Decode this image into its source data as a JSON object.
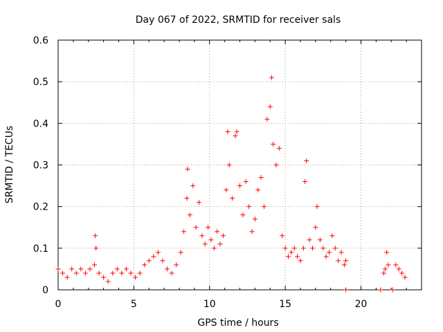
{
  "chart_data": {
    "type": "scatter",
    "title": "Day 067 of 2022, SRMTID for receiver sals",
    "xlabel": "GPS time / hours",
    "ylabel": "SRMTID / TECUs",
    "xlim": [
      0,
      24
    ],
    "ylim": [
      0,
      0.6
    ],
    "x_ticks": [
      0,
      5,
      10,
      15,
      20
    ],
    "y_ticks": [
      0,
      0.1,
      0.2,
      0.3,
      0.4,
      0.5,
      0.6
    ],
    "x_tick_labels": [
      "0",
      "5",
      "10",
      "15",
      "20"
    ],
    "y_tick_labels": [
      "0",
      "0.1",
      "0.2",
      "0.3",
      "0.4",
      "0.5",
      "0.6"
    ],
    "grid": true,
    "marker": "+",
    "color": "#ff0000",
    "series": [
      {
        "name": "SRMTID",
        "points": [
          [
            0.0,
            0.05
          ],
          [
            0.3,
            0.04
          ],
          [
            0.6,
            0.03
          ],
          [
            0.9,
            0.05
          ],
          [
            1.2,
            0.04
          ],
          [
            1.5,
            0.05
          ],
          [
            1.8,
            0.04
          ],
          [
            2.1,
            0.05
          ],
          [
            2.4,
            0.06
          ],
          [
            2.45,
            0.13
          ],
          [
            2.5,
            0.1
          ],
          [
            2.7,
            0.04
          ],
          [
            3.0,
            0.03
          ],
          [
            3.3,
            0.02
          ],
          [
            3.6,
            0.04
          ],
          [
            3.9,
            0.05
          ],
          [
            4.2,
            0.04
          ],
          [
            4.5,
            0.05
          ],
          [
            4.8,
            0.04
          ],
          [
            5.1,
            0.03
          ],
          [
            5.4,
            0.04
          ],
          [
            5.7,
            0.06
          ],
          [
            6.0,
            0.07
          ],
          [
            6.3,
            0.08
          ],
          [
            6.6,
            0.09
          ],
          [
            6.9,
            0.07
          ],
          [
            7.2,
            0.05
          ],
          [
            7.5,
            0.04
          ],
          [
            7.8,
            0.06
          ],
          [
            8.1,
            0.09
          ],
          [
            8.3,
            0.14
          ],
          [
            8.5,
            0.22
          ],
          [
            8.55,
            0.29
          ],
          [
            8.7,
            0.18
          ],
          [
            8.9,
            0.25
          ],
          [
            9.1,
            0.15
          ],
          [
            9.3,
            0.21
          ],
          [
            9.5,
            0.13
          ],
          [
            9.7,
            0.11
          ],
          [
            9.9,
            0.15
          ],
          [
            10.1,
            0.12
          ],
          [
            10.3,
            0.1
          ],
          [
            10.5,
            0.14
          ],
          [
            10.7,
            0.11
          ],
          [
            10.9,
            0.13
          ],
          [
            11.1,
            0.24
          ],
          [
            11.2,
            0.38
          ],
          [
            11.3,
            0.3
          ],
          [
            11.5,
            0.22
          ],
          [
            11.7,
            0.37
          ],
          [
            11.8,
            0.38
          ],
          [
            12.0,
            0.25
          ],
          [
            12.2,
            0.18
          ],
          [
            12.4,
            0.26
          ],
          [
            12.6,
            0.2
          ],
          [
            12.8,
            0.14
          ],
          [
            13.0,
            0.17
          ],
          [
            13.2,
            0.24
          ],
          [
            13.4,
            0.27
          ],
          [
            13.6,
            0.2
          ],
          [
            13.8,
            0.41
          ],
          [
            14.0,
            0.44
          ],
          [
            14.1,
            0.51
          ],
          [
            14.2,
            0.35
          ],
          [
            14.4,
            0.3
          ],
          [
            14.6,
            0.34
          ],
          [
            14.8,
            0.13
          ],
          [
            15.0,
            0.1
          ],
          [
            15.2,
            0.08
          ],
          [
            15.4,
            0.09
          ],
          [
            15.6,
            0.1
          ],
          [
            15.8,
            0.08
          ],
          [
            16.0,
            0.07
          ],
          [
            16.2,
            0.1
          ],
          [
            16.3,
            0.26
          ],
          [
            16.4,
            0.31
          ],
          [
            16.6,
            0.12
          ],
          [
            16.8,
            0.1
          ],
          [
            17.0,
            0.15
          ],
          [
            17.1,
            0.2
          ],
          [
            17.3,
            0.12
          ],
          [
            17.5,
            0.1
          ],
          [
            17.7,
            0.08
          ],
          [
            17.9,
            0.09
          ],
          [
            18.1,
            0.13
          ],
          [
            18.3,
            0.1
          ],
          [
            18.5,
            0.07
          ],
          [
            18.7,
            0.09
          ],
          [
            18.9,
            0.06
          ],
          [
            19.0,
            0.07
          ],
          [
            19.0,
            0.0
          ],
          [
            21.3,
            0.0
          ],
          [
            21.5,
            0.04
          ],
          [
            21.6,
            0.05
          ],
          [
            21.7,
            0.09
          ],
          [
            21.8,
            0.06
          ],
          [
            22.1,
            0.0
          ],
          [
            22.3,
            0.06
          ],
          [
            22.5,
            0.05
          ],
          [
            22.7,
            0.04
          ],
          [
            22.9,
            0.03
          ]
        ]
      }
    ]
  }
}
